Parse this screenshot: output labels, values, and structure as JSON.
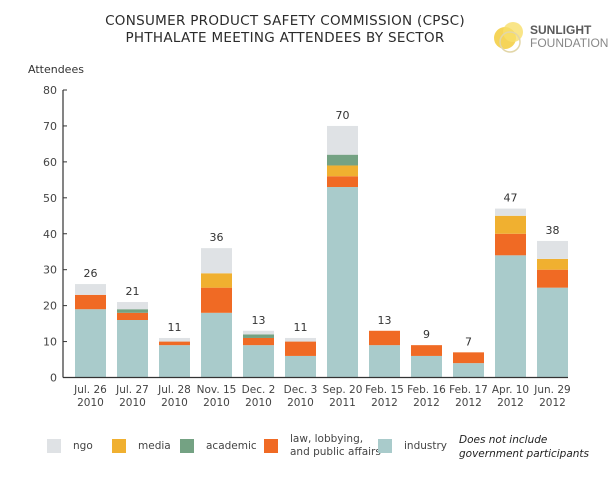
{
  "header": {
    "title_line1": "CONSUMER PRODUCT SAFETY COMMISSION (CPSC)",
    "title_line2": "PHTHALATE MEETING ATTENDEES BY SECTOR",
    "logo_line1": "SUNLIGHT",
    "logo_line2": "FOUNDATION"
  },
  "note_line1": "Does not include",
  "note_line2": "government participants",
  "chart_data": {
    "type": "bar",
    "stacked": true,
    "title": "CONSUMER PRODUCT SAFETY COMMISSION (CPSC) PHTHALATE MEETING ATTENDEES BY SECTOR",
    "xlabel": "",
    "ylabel": "Attendees",
    "ylim": [
      0,
      80
    ],
    "yticks": [
      0,
      10,
      20,
      30,
      40,
      50,
      60,
      70,
      80
    ],
    "grid": false,
    "legend_position": "bottom",
    "categories": [
      [
        "Jul. 26",
        "2010"
      ],
      [
        "Jul. 27",
        "2010"
      ],
      [
        "Jul. 28",
        "2010"
      ],
      [
        "Nov. 15",
        "2010"
      ],
      [
        "Dec. 2",
        "2010"
      ],
      [
        "Dec. 3",
        "2010"
      ],
      [
        "Sep. 20",
        "2011"
      ],
      [
        "Feb. 15",
        "2012"
      ],
      [
        "Feb. 16",
        "2012"
      ],
      [
        "Feb. 17",
        "2012"
      ],
      [
        "Apr. 10",
        "2012"
      ],
      [
        "Jun. 29",
        "2012"
      ]
    ],
    "totals": [
      26,
      21,
      11,
      36,
      13,
      11,
      70,
      13,
      9,
      7,
      47,
      38
    ],
    "series": [
      {
        "name": "industry",
        "label": "industry",
        "color": "#a9cbcb",
        "values": [
          19,
          16,
          9,
          18,
          9,
          6,
          53,
          9,
          6,
          4,
          34,
          25
        ]
      },
      {
        "name": "law",
        "label": "law, lobbying, and public affairs",
        "label_lines": [
          "law, lobbying,",
          "and public affairs"
        ],
        "color": "#f06a24",
        "values": [
          4,
          2,
          1,
          7,
          2,
          4,
          3,
          4,
          3,
          3,
          6,
          5
        ]
      },
      {
        "name": "media",
        "label": "media",
        "color": "#f0b030",
        "values": [
          0,
          0,
          0,
          4,
          0,
          0,
          3,
          0,
          0,
          0,
          5,
          3
        ]
      },
      {
        "name": "academic",
        "label": "academic",
        "color": "#74a283",
        "values": [
          0,
          1,
          0,
          0,
          1,
          0,
          3,
          0,
          0,
          0,
          0,
          0
        ]
      },
      {
        "name": "ngo",
        "label": "ngo",
        "color": "#dfe2e5",
        "values": [
          3,
          2,
          1,
          7,
          1,
          1,
          8,
          0,
          0,
          0,
          2,
          5
        ]
      }
    ],
    "legend_order": [
      "ngo",
      "media",
      "academic",
      "law",
      "industry"
    ]
  }
}
